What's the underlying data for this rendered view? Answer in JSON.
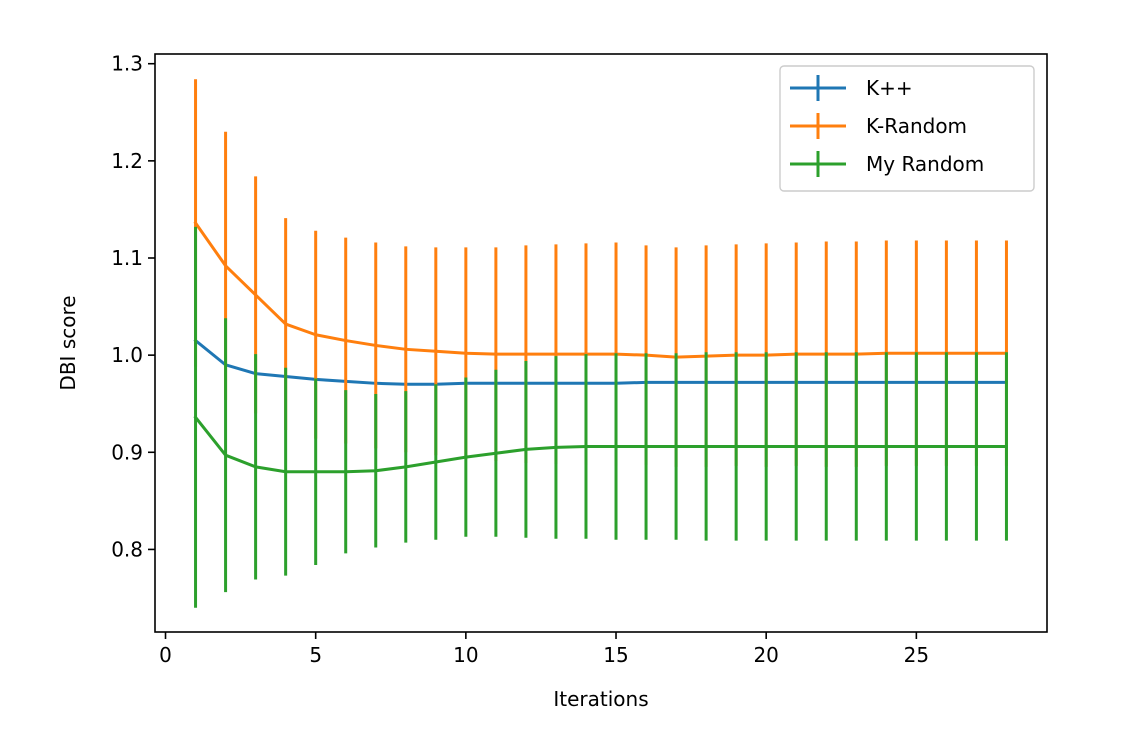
{
  "chart_data": {
    "type": "line",
    "title": "",
    "xlabel": "Iterations",
    "ylabel": "DBI score",
    "xlim": [
      -0.35,
      29.35
    ],
    "ylim": [
      0.715,
      1.31
    ],
    "xticks": [
      0,
      5,
      10,
      15,
      20,
      25
    ],
    "yticks": [
      0.8,
      0.9,
      1.0,
      1.1,
      1.2,
      1.3
    ],
    "xtick_labels": [
      "0",
      "5",
      "10",
      "15",
      "20",
      "25"
    ],
    "ytick_labels": [
      "0.8",
      "0.9",
      "1.0",
      "1.1",
      "1.2",
      "1.3"
    ],
    "grid": false,
    "legend_position": "top-right",
    "error_bars": true,
    "x": [
      1,
      2,
      3,
      4,
      5,
      6,
      7,
      8,
      9,
      10,
      11,
      12,
      13,
      14,
      15,
      16,
      17,
      18,
      19,
      20,
      21,
      22,
      23,
      24,
      25,
      26,
      27,
      28
    ],
    "series": [
      {
        "name": "K++",
        "color": "#1f77b4",
        "values": [
          1.015,
          0.99,
          0.981,
          0.978,
          0.975,
          0.973,
          0.971,
          0.97,
          0.97,
          0.971,
          0.971,
          0.971,
          0.971,
          0.971,
          0.971,
          0.972,
          0.972,
          0.972,
          0.972,
          0.972,
          0.972,
          0.972,
          0.972,
          0.972,
          0.972,
          0.972,
          0.972,
          0.972
        ],
        "errors": [
          0,
          0,
          0,
          0,
          0,
          0,
          0,
          0,
          0,
          0,
          0,
          0,
          0,
          0,
          0,
          0,
          0,
          0,
          0,
          0,
          0,
          0,
          0,
          0,
          0,
          0,
          0,
          0
        ]
      },
      {
        "name": "K-Random",
        "color": "#ff7f0e",
        "values": [
          1.136,
          1.092,
          1.062,
          1.032,
          1.021,
          1.015,
          1.01,
          1.006,
          1.004,
          1.002,
          1.001,
          1.001,
          1.001,
          1.001,
          1.001,
          1.0,
          0.998,
          0.999,
          1.0,
          1.0,
          1.001,
          1.001,
          1.001,
          1.002,
          1.002,
          1.002,
          1.002,
          1.002
        ],
        "errors": [
          0.148,
          0.138,
          0.122,
          0.109,
          0.107,
          0.106,
          0.106,
          0.106,
          0.107,
          0.109,
          0.11,
          0.112,
          0.113,
          0.114,
          0.115,
          0.113,
          0.113,
          0.114,
          0.114,
          0.115,
          0.115,
          0.116,
          0.116,
          0.116,
          0.116,
          0.116,
          0.116,
          0.116
        ]
      },
      {
        "name": "My Random",
        "color": "#2ca02c",
        "values": [
          0.936,
          0.897,
          0.885,
          0.88,
          0.88,
          0.88,
          0.881,
          0.885,
          0.89,
          0.895,
          0.899,
          0.903,
          0.905,
          0.906,
          0.906,
          0.906,
          0.906,
          0.906,
          0.906,
          0.906,
          0.906,
          0.906,
          0.906,
          0.906,
          0.906,
          0.906,
          0.906,
          0.906
        ],
        "errors": [
          0.196,
          0.141,
          0.116,
          0.107,
          0.096,
          0.084,
          0.079,
          0.078,
          0.08,
          0.082,
          0.086,
          0.091,
          0.094,
          0.095,
          0.096,
          0.096,
          0.096,
          0.097,
          0.097,
          0.097,
          0.097,
          0.097,
          0.097,
          0.097,
          0.097,
          0.097,
          0.097,
          0.097
        ]
      }
    ]
  }
}
